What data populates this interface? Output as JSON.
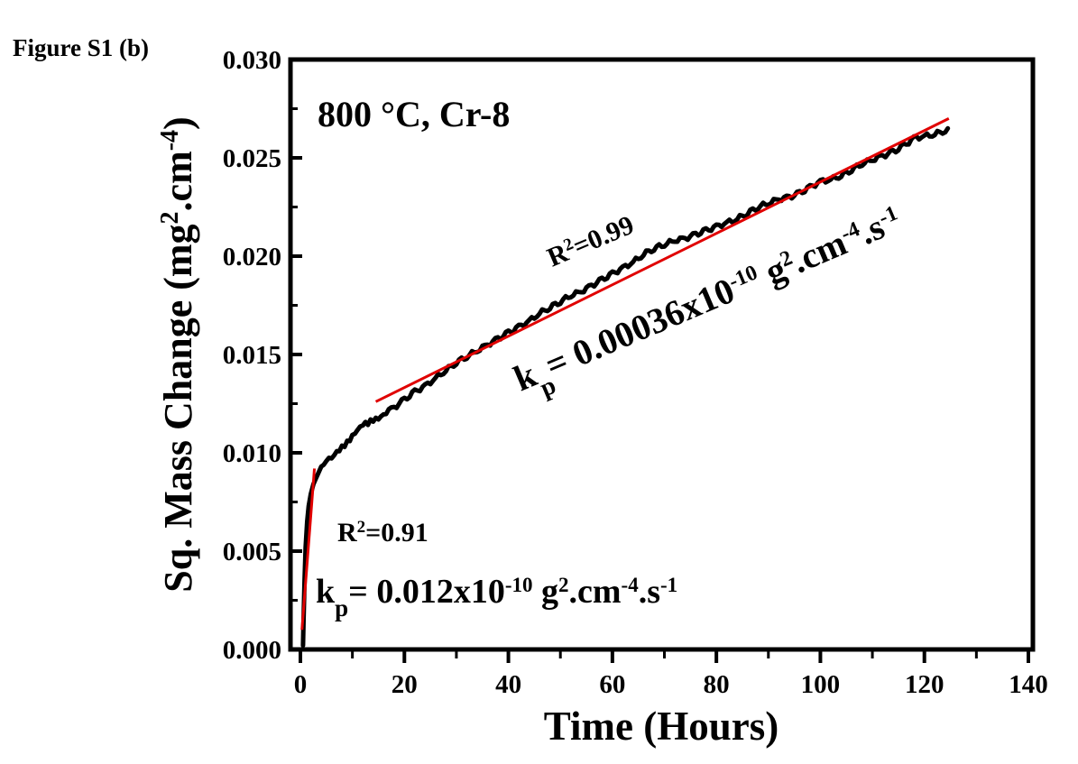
{
  "figure_label": "Figure S1 (b)",
  "chart_data": {
    "type": "line",
    "xlabel": "Time (Hours)",
    "ylabel_parts": {
      "pre": "Sq. Mass Change (mg",
      "sup1": "2",
      "mid": ".cm",
      "sup2": "-4",
      "post": ")"
    },
    "xlim": [
      0,
      140
    ],
    "ylim": [
      0,
      0.03
    ],
    "x_ticks": [
      "0",
      "20",
      "40",
      "60",
      "80",
      "100",
      "120",
      "140"
    ],
    "y_ticks": [
      "0.000",
      "0.005",
      "0.010",
      "0.015",
      "0.020",
      "0.025",
      "0.030"
    ],
    "grid": false,
    "colors": {
      "data": "#000000",
      "fit": "#e00000",
      "axis": "#000000"
    },
    "condition_label": "800 °C, Cr-8",
    "series": [
      {
        "x": [
          0.5,
          0.6,
          0.8,
          1.0,
          1.3,
          1.6,
          2.0,
          2.5,
          3.0,
          3.5,
          4.0,
          4.5,
          5.0,
          6.0,
          7.0,
          8.0,
          9.0,
          10.0,
          11.0,
          12.0,
          13.0,
          14.0,
          15.0,
          16.0,
          18.0,
          20.0,
          22.0,
          24.0,
          26.0,
          28.0,
          30.0,
          32.0,
          34.0,
          36.0,
          38.0,
          40.0,
          42.0,
          44.0,
          46.0,
          48.0,
          50.0,
          52.0,
          54.0,
          56.0,
          58.0,
          60.0,
          62.0,
          64.0,
          66.0,
          68.0,
          70.0,
          72.0,
          74.0,
          76.0,
          78.0,
          80.0,
          82.0,
          84.0,
          86.0,
          88.0,
          90.0,
          92.0,
          94.0,
          96.0,
          98.0,
          100.0,
          102.0,
          104.0,
          106.0,
          108.0,
          110.0,
          112.0,
          114.0,
          116.0,
          118.0,
          120.0,
          122.0,
          124.0,
          124.5
        ],
        "y": [
          0.0002,
          0.0015,
          0.0035,
          0.0052,
          0.0065,
          0.0073,
          0.0079,
          0.0084,
          0.0087,
          0.009,
          0.0093,
          0.0095,
          0.0097,
          0.0098,
          0.0101,
          0.0103,
          0.0105,
          0.0108,
          0.0111,
          0.0114,
          0.0115,
          0.0117,
          0.0118,
          0.012,
          0.0123,
          0.0127,
          0.0131,
          0.0134,
          0.0138,
          0.0142,
          0.0146,
          0.0149,
          0.0152,
          0.0155,
          0.0158,
          0.0161,
          0.0164,
          0.0167,
          0.0171,
          0.0174,
          0.0177,
          0.018,
          0.0182,
          0.0185,
          0.0188,
          0.0191,
          0.0194,
          0.0197,
          0.0201,
          0.0204,
          0.0206,
          0.0208,
          0.0209,
          0.0211,
          0.0213,
          0.0215,
          0.0217,
          0.0219,
          0.0222,
          0.0225,
          0.0227,
          0.0229,
          0.023,
          0.0232,
          0.0235,
          0.0238,
          0.0239,
          0.0241,
          0.0244,
          0.0247,
          0.0249,
          0.0251,
          0.0253,
          0.0256,
          0.026,
          0.0261,
          0.0262,
          0.0264,
          0.0265
        ]
      }
    ],
    "fits": [
      {
        "x": [
          0.3,
          2.7
        ],
        "y": [
          0.001,
          0.0092
        ]
      },
      {
        "x": [
          14.5,
          124.7
        ],
        "y": [
          0.0126,
          0.027
        ]
      }
    ],
    "annotations": {
      "fit1_r2_pre": "R",
      "fit1_r2_sup": "2",
      "fit1_r2_post": "=0.91",
      "fit1_kp": {
        "k": "k",
        "sub": "p",
        "eq": "= 0.012x10",
        "exp": "-10",
        "g": " g",
        "g_sup": "2",
        "cm": ".cm",
        "cm_sup": "-4",
        "s": ".s",
        "s_sup": "-1"
      },
      "fit2_r2_pre": "R",
      "fit2_r2_sup": "2",
      "fit2_r2_post": "=0.99",
      "fit2_kp": {
        "k": "k",
        "sub": "p",
        "eq": "= 0.00036x10",
        "exp": "-10",
        "g": "  g",
        "g_sup": "2",
        "cm": ".cm",
        "cm_sup": "-4",
        "s": ".s",
        "s_sup": "-1"
      }
    }
  }
}
